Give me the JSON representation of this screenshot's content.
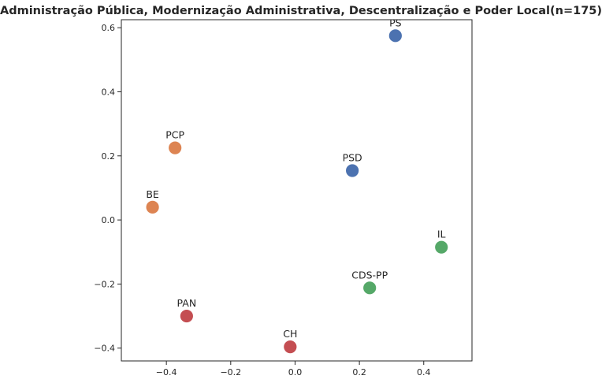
{
  "chart_data": {
    "type": "scatter",
    "title": "Administração Pública, Modernização Administrativa, Descentralização e Poder Local(n=175)",
    "xlabel": "",
    "ylabel": "",
    "xlim": [
      -0.54,
      0.55
    ],
    "ylim": [
      -0.44,
      0.625
    ],
    "xticks": [
      -0.4,
      -0.2,
      0.0,
      0.2,
      0.4
    ],
    "xtick_labels": [
      "−0.4",
      "−0.2",
      "0.0",
      "0.2",
      "0.4"
    ],
    "yticks": [
      -0.4,
      -0.2,
      0.0,
      0.2,
      0.4,
      0.6
    ],
    "ytick_labels": [
      "−0.4",
      "−0.2",
      "0.0",
      "0.2",
      "0.4",
      "0.6"
    ],
    "grid": false,
    "points": [
      {
        "label": "PS",
        "x": 0.312,
        "y": 0.575,
        "color": "#4c72b0"
      },
      {
        "label": "PSD",
        "x": 0.178,
        "y": 0.154,
        "color": "#4c72b0"
      },
      {
        "label": "PCP",
        "x": -0.373,
        "y": 0.225,
        "color": "#dd8452"
      },
      {
        "label": "BE",
        "x": -0.443,
        "y": 0.04,
        "color": "#dd8452"
      },
      {
        "label": "IL",
        "x": 0.455,
        "y": -0.085,
        "color": "#55a868"
      },
      {
        "label": "CDS-PP",
        "x": 0.232,
        "y": -0.212,
        "color": "#55a868"
      },
      {
        "label": "PAN",
        "x": -0.337,
        "y": -0.3,
        "color": "#c44e52"
      },
      {
        "label": "CH",
        "x": -0.015,
        "y": -0.396,
        "color": "#c44e52"
      }
    ]
  }
}
